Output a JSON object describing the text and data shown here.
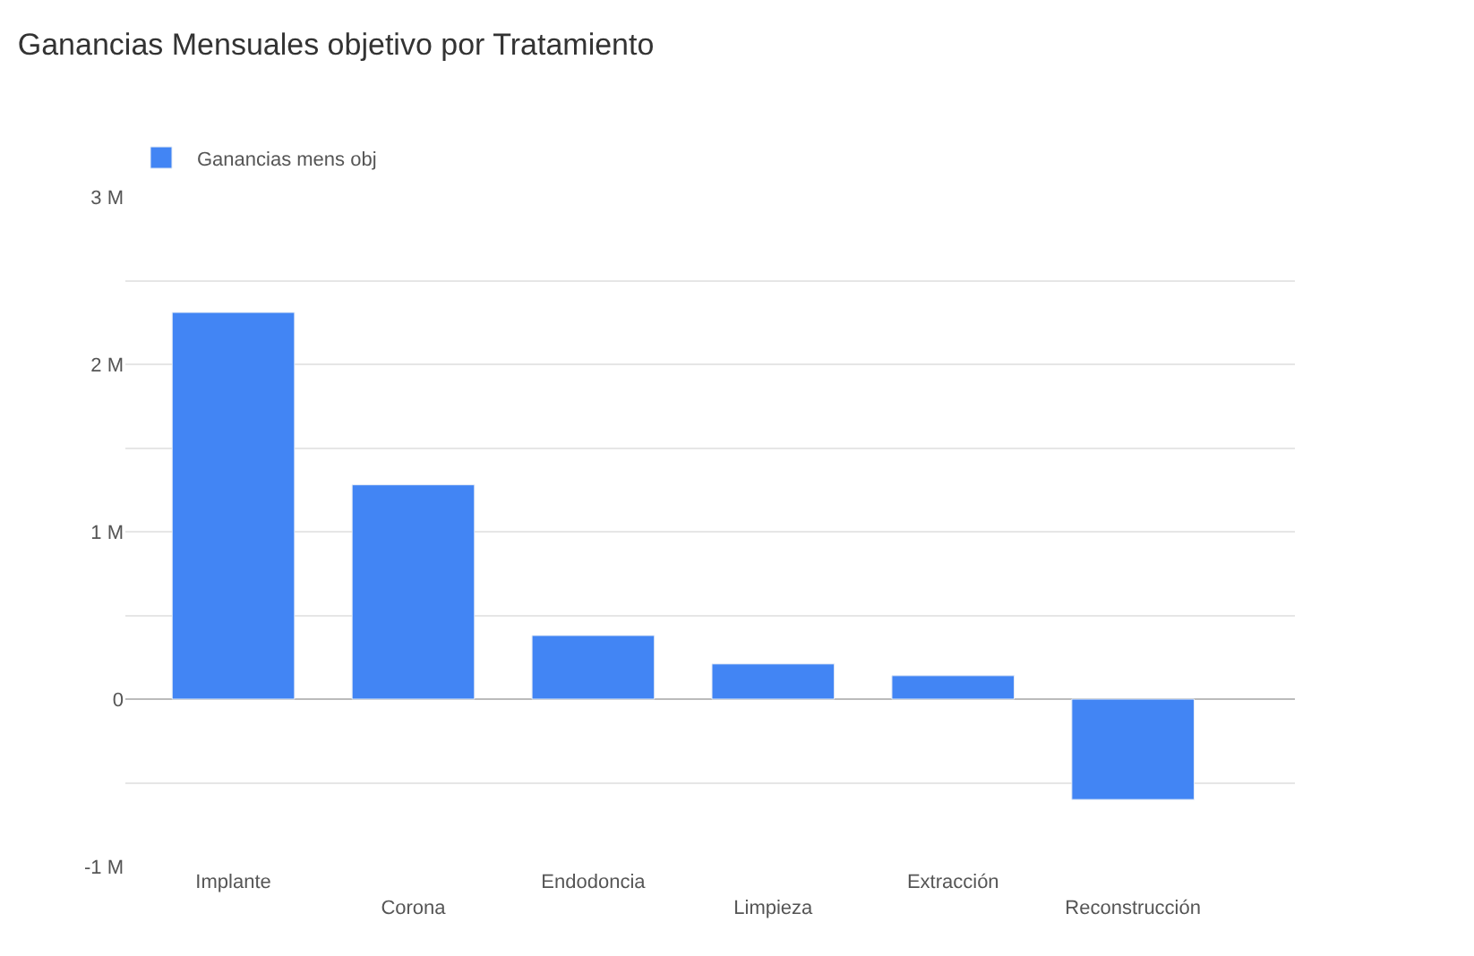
{
  "chart_data": {
    "type": "bar",
    "title": "Ganancias Mensuales objetivo por Tratamiento",
    "categories": [
      "Implante",
      "Corona",
      "Endodoncia",
      "Limpieza",
      "Extracción",
      "Reconstrucción"
    ],
    "series": [
      {
        "name": "Ganancias mens obj",
        "color": "#4285f4",
        "values": [
          2310000,
          1280000,
          380000,
          210000,
          140000,
          -600000
        ]
      }
    ],
    "ylim": [
      -1000000,
      3000000
    ],
    "yticks": [
      {
        "value": -1000000,
        "label": "-1 M"
      },
      {
        "value": -500000,
        "label": null
      },
      0,
      {
        "value": 500000,
        "label": null
      },
      {
        "value": 1000000,
        "label": "1 M"
      },
      {
        "value": 1500000,
        "label": null
      },
      {
        "value": 2000000,
        "label": "2 M"
      },
      {
        "value": 2500000,
        "label": null
      },
      {
        "value": 3000000,
        "label": "3 M"
      }
    ],
    "grid": "y",
    "legend": "top left"
  }
}
